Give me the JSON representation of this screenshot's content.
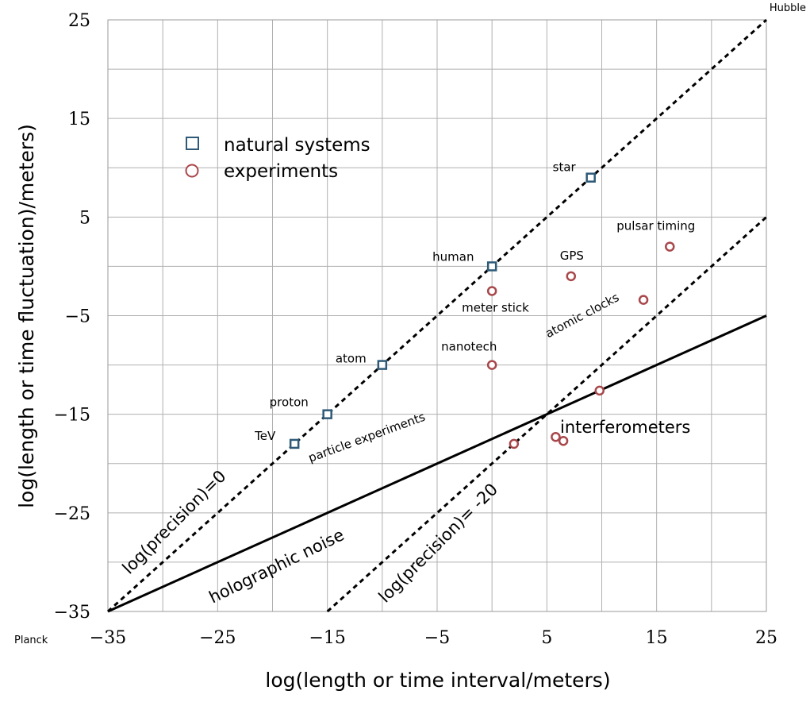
{
  "chart_data": {
    "type": "scatter",
    "xlabel": "log(length or time interval/meters)",
    "ylabel": "log(length or time fluctuation)/meters)",
    "xlim": [
      -35,
      25
    ],
    "ylim": [
      -35,
      25
    ],
    "x_ticks": [
      "−35",
      "−25",
      "−15",
      "−5",
      "5",
      "15",
      "25"
    ],
    "y_ticks": [
      "−35",
      "−25",
      "−15",
      "−5",
      "5",
      "15",
      "25"
    ],
    "x_tick_values": [
      -35,
      -25,
      -15,
      -5,
      5,
      15,
      25
    ],
    "y_tick_values": [
      -35,
      -25,
      -15,
      -5,
      5,
      15,
      25
    ],
    "grid": true,
    "corner_labels": {
      "bottom_left": "Planck",
      "top_right": "Hubble"
    },
    "legend": {
      "placement": "top-left",
      "entries": [
        {
          "name": "natural systems",
          "marker": "square",
          "color": "#2e5a78"
        },
        {
          "name": "experiments",
          "marker": "circle",
          "color": "#a8474a"
        }
      ]
    },
    "series": [
      {
        "name": "natural systems",
        "marker": "square",
        "color": "#2e5a78",
        "points": [
          {
            "x": -18,
            "y": -18,
            "label": "TeV"
          },
          {
            "x": -15,
            "y": -15,
            "label": "proton"
          },
          {
            "x": -10,
            "y": -10,
            "label": "atom"
          },
          {
            "x": 0,
            "y": 0,
            "label": "human"
          },
          {
            "x": 9,
            "y": 9,
            "label": "star"
          }
        ]
      },
      {
        "name": "experiments",
        "marker": "circle",
        "color": "#a8474a",
        "points": [
          {
            "x": 0,
            "y": -2.5,
            "label": "meter stick"
          },
          {
            "x": 0,
            "y": -10,
            "label": "nanotech"
          },
          {
            "x": 7.2,
            "y": -1,
            "label": "GPS"
          },
          {
            "x": 16.2,
            "y": 2,
            "label": "pulsar timing"
          },
          {
            "x": 13.8,
            "y": -3.4,
            "label": "atomic clocks"
          },
          {
            "x": 9.8,
            "y": -12.6,
            "label": ""
          },
          {
            "x": 2,
            "y": -18,
            "label": ""
          },
          {
            "x": 5.8,
            "y": -17.3,
            "label": ""
          },
          {
            "x": 6.5,
            "y": -17.7,
            "label": ""
          }
        ]
      }
    ],
    "lines": [
      {
        "style": "dashed",
        "x1": -35,
        "y1": -35,
        "x2": 25,
        "y2": 25,
        "label": "log(precision)=0"
      },
      {
        "style": "dashed",
        "x1": -15,
        "y1": -35,
        "x2": 25,
        "y2": 5,
        "label": "log(precision)= -20"
      },
      {
        "style": "solid",
        "x1": -35,
        "y1": -35,
        "x2": 25,
        "y2": -5,
        "label": "holographic noise"
      }
    ],
    "annotations": [
      {
        "text": "particle experiments"
      },
      {
        "text": "interferometers"
      }
    ]
  }
}
